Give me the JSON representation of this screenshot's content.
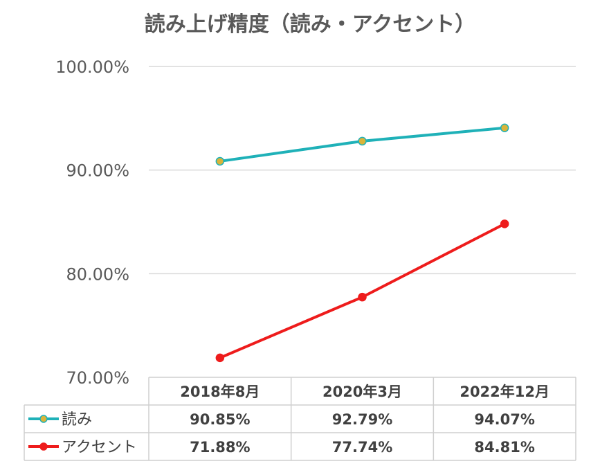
{
  "chart_data": {
    "type": "line",
    "title": "読み上げ精度（読み・アクセント）",
    "categories": [
      "2018年8月",
      "2020年3月",
      "2022年12月"
    ],
    "series": [
      {
        "name": "読み",
        "values": [
          90.85,
          92.79,
          94.07
        ],
        "labels": [
          "90.85%",
          "92.79%",
          "94.07%"
        ],
        "color": "#1fb1b8",
        "marker_color": "#d9b43a"
      },
      {
        "name": "アクセント",
        "values": [
          71.88,
          77.74,
          84.81
        ],
        "labels": [
          "71.88%",
          "77.74%",
          "84.81%"
        ],
        "color": "#ee1c1c",
        "marker_color": "#ee1c1c"
      }
    ],
    "ylim": [
      70,
      100
    ],
    "yticks": [
      70,
      80,
      90,
      100
    ],
    "ytick_labels": [
      "70.00%",
      "80.00%",
      "90.00%",
      "100.00%"
    ],
    "grid": true,
    "legend": "data-table",
    "xlabel": "",
    "ylabel": ""
  }
}
